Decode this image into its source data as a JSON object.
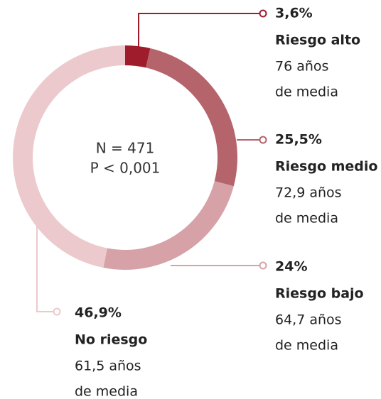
{
  "chart_data": {
    "type": "donut",
    "categories": [
      "Riesgo alto",
      "Riesgo medio",
      "Riesgo bajo",
      "No riesgo"
    ],
    "values": [
      3.6,
      25.5,
      24,
      46.9
    ],
    "value_labels": [
      "3,6%",
      "25,5%",
      "24%",
      "46,9%"
    ],
    "colors": [
      "#9e1c2b",
      "#b5646b",
      "#d6a2a7",
      "#ecc9cc"
    ],
    "details": [
      [
        "76 años",
        "de media"
      ],
      [
        "72,9 años",
        "de media"
      ],
      [
        "64,7 años",
        "de media"
      ],
      [
        "61,5 años",
        "de media"
      ]
    ],
    "center_text": [
      "N = 471",
      "P < 0,001"
    ]
  }
}
